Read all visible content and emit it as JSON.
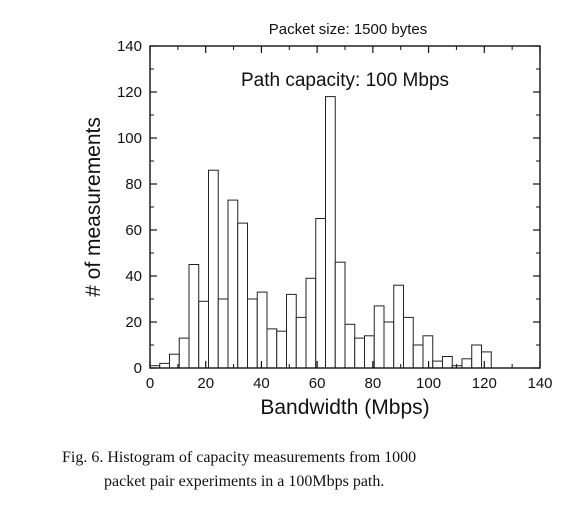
{
  "chart_data": {
    "type": "bar",
    "title": "Packet size: 1500 bytes",
    "annotation": "Path capacity: 100 Mbps",
    "xlabel": "Bandwidth (Mbps)",
    "ylabel": "# of measurements",
    "xlim": [
      0,
      140
    ],
    "ylim": [
      0,
      140
    ],
    "xticks": [
      0,
      20,
      40,
      60,
      80,
      100,
      120,
      140
    ],
    "yticks": [
      0,
      20,
      40,
      60,
      80,
      100,
      120,
      140
    ],
    "grid": false,
    "bin_width": 3.5,
    "bins": [
      {
        "x0": 0.0,
        "x1": 3.5,
        "value": 1
      },
      {
        "x0": 3.5,
        "x1": 7.0,
        "value": 2
      },
      {
        "x0": 7.0,
        "x1": 10.5,
        "value": 6
      },
      {
        "x0": 10.5,
        "x1": 14.0,
        "value": 13
      },
      {
        "x0": 14.0,
        "x1": 17.5,
        "value": 45
      },
      {
        "x0": 17.5,
        "x1": 21.0,
        "value": 29
      },
      {
        "x0": 21.0,
        "x1": 24.5,
        "value": 86
      },
      {
        "x0": 24.5,
        "x1": 28.0,
        "value": 30
      },
      {
        "x0": 28.0,
        "x1": 31.5,
        "value": 73
      },
      {
        "x0": 31.5,
        "x1": 35.0,
        "value": 63
      },
      {
        "x0": 35.0,
        "x1": 38.5,
        "value": 30
      },
      {
        "x0": 38.5,
        "x1": 42.0,
        "value": 33
      },
      {
        "x0": 42.0,
        "x1": 45.5,
        "value": 17
      },
      {
        "x0": 45.5,
        "x1": 49.0,
        "value": 16
      },
      {
        "x0": 49.0,
        "x1": 52.5,
        "value": 32
      },
      {
        "x0": 52.5,
        "x1": 56.0,
        "value": 22
      },
      {
        "x0": 56.0,
        "x1": 59.5,
        "value": 39
      },
      {
        "x0": 59.5,
        "x1": 63.0,
        "value": 65
      },
      {
        "x0": 63.0,
        "x1": 66.5,
        "value": 118
      },
      {
        "x0": 66.5,
        "x1": 70.0,
        "value": 46
      },
      {
        "x0": 70.0,
        "x1": 73.5,
        "value": 19
      },
      {
        "x0": 73.5,
        "x1": 77.0,
        "value": 13
      },
      {
        "x0": 77.0,
        "x1": 80.5,
        "value": 14
      },
      {
        "x0": 80.5,
        "x1": 84.0,
        "value": 27
      },
      {
        "x0": 84.0,
        "x1": 87.5,
        "value": 20
      },
      {
        "x0": 87.5,
        "x1": 91.0,
        "value": 36
      },
      {
        "x0": 91.0,
        "x1": 94.5,
        "value": 22
      },
      {
        "x0": 94.5,
        "x1": 98.0,
        "value": 10
      },
      {
        "x0": 98.0,
        "x1": 101.5,
        "value": 14
      },
      {
        "x0": 101.5,
        "x1": 105.0,
        "value": 3
      },
      {
        "x0": 105.0,
        "x1": 108.5,
        "value": 5
      },
      {
        "x0": 108.5,
        "x1": 112.0,
        "value": 1
      },
      {
        "x0": 112.0,
        "x1": 115.5,
        "value": 4
      },
      {
        "x0": 115.5,
        "x1": 119.0,
        "value": 10
      },
      {
        "x0": 119.0,
        "x1": 122.5,
        "value": 7
      }
    ]
  },
  "caption": {
    "line1": "Fig. 6.    Histogram of capacity measurements from 1000",
    "line2": "packet pair experiments in a 100Mbps path."
  }
}
